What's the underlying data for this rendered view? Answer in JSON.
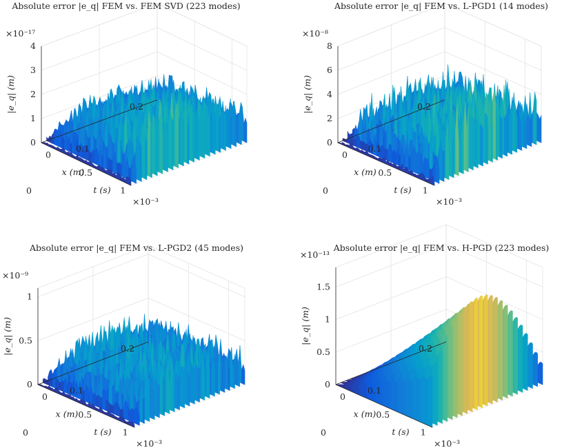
{
  "chart_data": [
    {
      "type": "surface",
      "title": "Absolute error |e_q| FEM vs. FEM SVD (223 modes)",
      "xlabel": "t (s)",
      "ylabel": "x (m)",
      "zlabel": "|e_q| (m)",
      "t_ticks": [
        "0",
        "0.5",
        "1"
      ],
      "t_exponent": "×10⁻³",
      "x_ticks": [
        "0",
        "0.1",
        "0.2"
      ],
      "z_ticks": [
        "0",
        "1",
        "2",
        "3",
        "4"
      ],
      "z_exponent": "×10⁻¹⁷",
      "t_range": [
        0,
        0.0012
      ],
      "x_range": [
        0,
        0.2
      ],
      "z_range": [
        0,
        4e-17
      ],
      "z_top": 4,
      "z_scale_note": "values in ×10⁻¹⁷",
      "surface": "noise",
      "level": 2.0,
      "noise": 0.8,
      "ramp_t": 0.3,
      "osc": 1.2,
      "colorscale": "parula"
    },
    {
      "type": "surface",
      "title": "Absolute error |e_q| FEM vs. L-PGD1 (14 modes)",
      "xlabel": "t (s)",
      "ylabel": "x (m)",
      "zlabel": "|e_q| (m)",
      "t_ticks": [
        "0",
        "0.5",
        "1"
      ],
      "t_exponent": "×10⁻³",
      "x_ticks": [
        "0",
        "0.1",
        "0.2"
      ],
      "z_ticks": [
        "0",
        "2",
        "4",
        "6",
        "8"
      ],
      "z_exponent": "×10⁻⁸",
      "t_range": [
        0,
        0.0012
      ],
      "x_range": [
        0,
        0.2
      ],
      "z_range": [
        0,
        8e-08
      ],
      "z_top": 8,
      "z_scale_note": "values in ×10⁻⁸",
      "surface": "spiky",
      "level": 3.2,
      "noise": 2.4,
      "ramp_t": 0.5,
      "osc": 1.6,
      "colorscale": "parula"
    },
    {
      "type": "surface",
      "title": "Absolute error |e_q| FEM vs. L-PGD2 (45 modes)",
      "xlabel": "t (s)",
      "ylabel": "x (m)",
      "zlabel": "|e_q| (m)",
      "t_ticks": [
        "0",
        "0.5",
        "1"
      ],
      "t_exponent": "×10⁻³",
      "x_ticks": [
        "0",
        "0.1",
        "0.2"
      ],
      "z_ticks": [
        "0",
        "0.5",
        "1"
      ],
      "z_exponent": "×10⁻⁹",
      "t_range": [
        0,
        0.0012
      ],
      "x_range": [
        0,
        0.2
      ],
      "z_range": [
        0,
        1.1e-09
      ],
      "z_top": 1.1,
      "z_scale_note": "values in ×10⁻⁹",
      "surface": "noise",
      "level": 0.55,
      "noise": 0.25,
      "ramp_t": 0.1,
      "osc": 0.15,
      "colorscale": "parula"
    },
    {
      "type": "surface",
      "title": "Absolute error |e_q| FEM vs. H-PGD (223 modes)",
      "xlabel": "t (s)",
      "ylabel": "x (m)",
      "zlabel": "|e_q| (m)",
      "t_ticks": [
        "0",
        "0.5",
        "1"
      ],
      "t_exponent": "×10⁻³",
      "x_ticks": [
        "0",
        "0.1",
        "0.2"
      ],
      "z_ticks": [
        "0",
        "0.5",
        "1",
        "1.5"
      ],
      "z_exponent": "×10⁻¹³",
      "t_range": [
        0,
        0.0012
      ],
      "x_range": [
        0,
        0.2
      ],
      "z_range": [
        0,
        1.8e-13
      ],
      "z_top": 1.8,
      "z_scale_note": "values in ×10⁻¹³",
      "surface": "smooth",
      "level": 1.75,
      "noise": 0.0,
      "ramp_t": 1.0,
      "osc": 0.08,
      "colorscale": "parula"
    }
  ]
}
